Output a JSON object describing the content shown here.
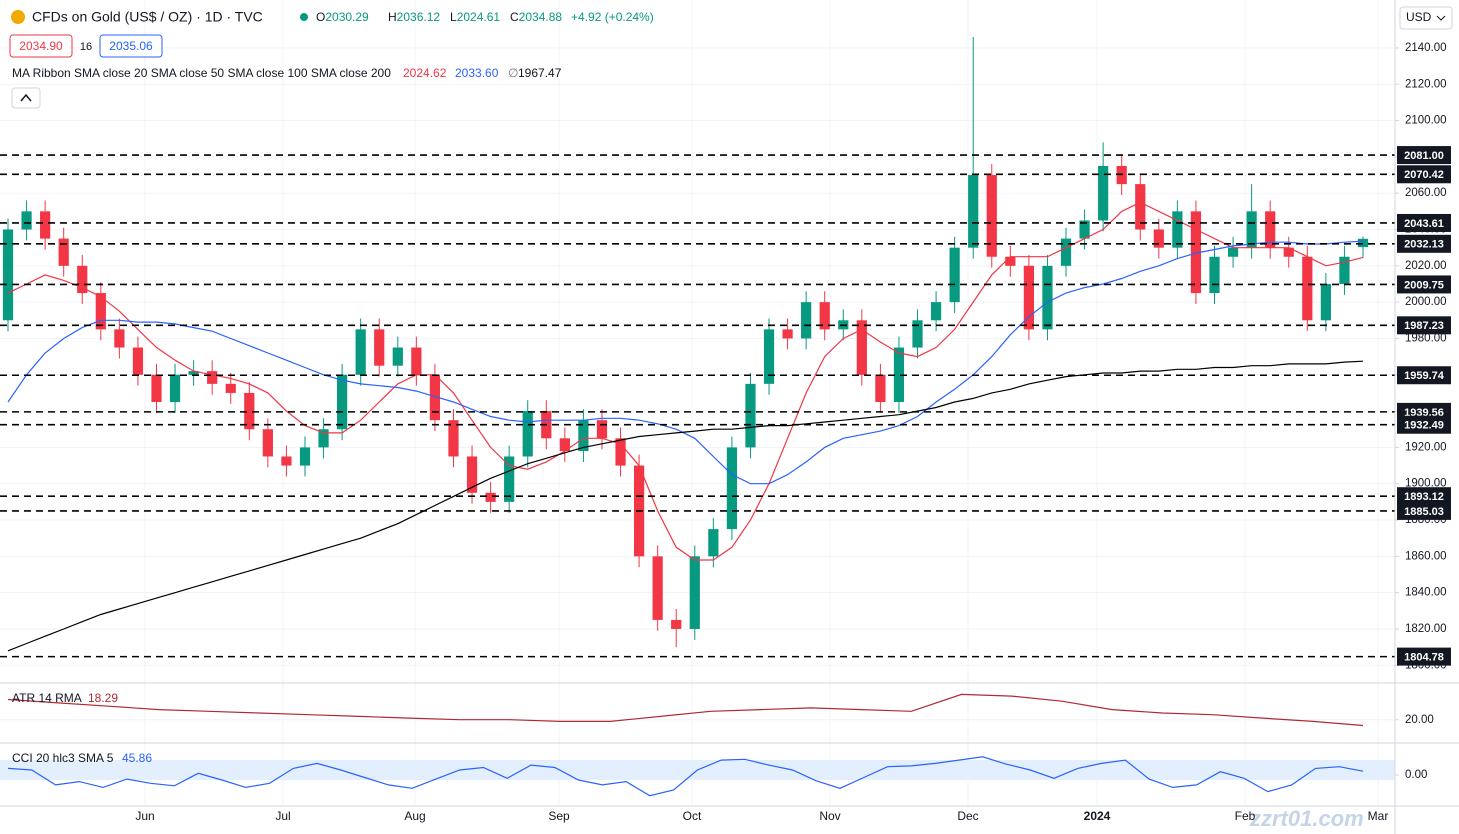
{
  "ui": {
    "currency": "USD",
    "bid": "2034.90",
    "spread": 16,
    "ask": "2035.06",
    "ma100_value": "∅",
    "watermark": "zzrt01.com",
    "ohlc": [
      {
        "label": "O",
        "value": 2030.29
      },
      {
        "label": "H",
        "value": 2036.12
      },
      {
        "label": "L",
        "value": 2024.61
      },
      {
        "label": "C",
        "value": 2034.88
      }
    ],
    "change": "+4.92 (+0.24%)"
  },
  "chart_data": [
    {
      "type": "candlestick",
      "title": "CFDs on Gold (US$ / OZ) · 1D · TVC",
      "legend_title": "MA Ribbon SMA close 20 SMA close 50 SMA close 100 SMA close 200",
      "x_labels": [
        "Jun",
        "Jul",
        "Aug",
        "Sep",
        "Oct",
        "Nov",
        "Dec",
        "2024",
        "Feb",
        "Mar"
      ],
      "up_color": "#089981",
      "down_color": "#f23645",
      "open": [
        1990,
        2040,
        2050,
        2035,
        2020,
        2005,
        1985,
        1975,
        1960,
        1945,
        1960,
        1962,
        1955,
        1950,
        1930,
        1915,
        1910,
        1920,
        1930,
        1960,
        1985,
        1965,
        1975,
        1960,
        1935,
        1915,
        1895,
        1890,
        1915,
        1940,
        1925,
        1918,
        1935,
        1925,
        1910,
        1860,
        1825,
        1820,
        1860,
        1875,
        1920,
        1955,
        1985,
        1980,
        2000,
        1985,
        1990,
        1960,
        1945,
        1975,
        1990,
        2000,
        2030,
        2070,
        2025,
        2020,
        1985,
        2020,
        2035,
        2045,
        2075,
        2065,
        2040,
        2030,
        2050,
        2005,
        2025,
        2030,
        2050,
        2030,
        2025,
        1990,
        2010,
        2030.29
      ],
      "high": [
        2046,
        2056,
        2056,
        2041,
        2026,
        2011,
        1991,
        1981,
        1966,
        1966,
        1968,
        1968,
        1961,
        1956,
        1936,
        1921,
        1926,
        1936,
        1966,
        1991,
        1991,
        1981,
        1981,
        1966,
        1941,
        1921,
        1901,
        1921,
        1946,
        1946,
        1931,
        1941,
        1941,
        1931,
        1916,
        1866,
        1831,
        1866,
        1881,
        1926,
        1961,
        1991,
        1991,
        2006,
        2006,
        1996,
        1996,
        1966,
        1981,
        1996,
        2006,
        2036,
        2146,
        2076,
        2031,
        2026,
        2026,
        2041,
        2051,
        2088,
        2081,
        2071,
        2046,
        2056,
        2056,
        2031,
        2036,
        2065,
        2056,
        2036,
        2031,
        2016,
        2031,
        2036.12
      ],
      "low": [
        1984,
        2034,
        2029,
        2014,
        1999,
        1979,
        1969,
        1954,
        1939,
        1939,
        1954,
        1949,
        1944,
        1924,
        1909,
        1904,
        1904,
        1914,
        1924,
        1954,
        1959,
        1959,
        1954,
        1929,
        1909,
        1889,
        1884,
        1884,
        1909,
        1919,
        1912,
        1912,
        1919,
        1904,
        1854,
        1819,
        1810,
        1814,
        1854,
        1869,
        1914,
        1949,
        1974,
        1974,
        1979,
        1979,
        1954,
        1939,
        1939,
        1969,
        1984,
        1994,
        2024,
        2019,
        2014,
        1979,
        1979,
        2014,
        2029,
        2039,
        2059,
        2034,
        2024,
        2024,
        1999,
        1999,
        2019,
        2024,
        2024,
        2019,
        1984,
        1984,
        2004,
        2024.61
      ],
      "close": [
        2040,
        2050,
        2035,
        2020,
        2005,
        1985,
        1975,
        1960,
        1945,
        1960,
        1962,
        1955,
        1950,
        1930,
        1915,
        1910,
        1920,
        1930,
        1960,
        1985,
        1965,
        1975,
        1960,
        1935,
        1915,
        1895,
        1890,
        1915,
        1940,
        1925,
        1918,
        1935,
        1925,
        1910,
        1860,
        1825,
        1820,
        1860,
        1875,
        1920,
        1955,
        1985,
        1980,
        2000,
        1985,
        1990,
        1960,
        1945,
        1975,
        1990,
        2000,
        2030,
        2070,
        2025,
        2020,
        1985,
        2020,
        2035,
        2045,
        2075,
        2065,
        2040,
        2030,
        2050,
        2005,
        2025,
        2030,
        2050,
        2030,
        2025,
        1990,
        2010,
        2025,
        2034.88
      ],
      "series": [
        {
          "name": "SMA close 20",
          "color": "#f23645",
          "values": [
            2005,
            2010,
            2015,
            2012,
            2008,
            2003,
            1995,
            1985,
            1975,
            1968,
            1962,
            1960,
            1958,
            1955,
            1950,
            1940,
            1932,
            1928,
            1928,
            1935,
            1945,
            1955,
            1960,
            1960,
            1950,
            1935,
            1920,
            1910,
            1908,
            1912,
            1918,
            1925,
            1925,
            1922,
            1910,
            1885,
            1865,
            1858,
            1858,
            1865,
            1880,
            1900,
            1925,
            1950,
            1970,
            1980,
            1985,
            1978,
            1972,
            1970,
            1975,
            1985,
            2000,
            2015,
            2025,
            2025,
            2025,
            2030,
            2035,
            2040,
            2050,
            2055,
            2050,
            2045,
            2040,
            2035,
            2030,
            2030,
            2030,
            2030,
            2025,
            2020,
            2022,
            2024.62
          ]
        },
        {
          "name": "SMA close 50",
          "color": "#2962ff",
          "last_label": "2033.60",
          "values": [
            1945,
            1960,
            1972,
            1980,
            1986,
            1990,
            1990,
            1989,
            1989,
            1988,
            1986,
            1984,
            1980,
            1976,
            1972,
            1968,
            1964,
            1960,
            1957,
            1955,
            1954,
            1953,
            1951,
            1948,
            1945,
            1941,
            1937,
            1935,
            1934,
            1935,
            1935,
            1935,
            1936,
            1936,
            1935,
            1933,
            1930,
            1925,
            1915,
            1905,
            1900,
            1900,
            1905,
            1912,
            1920,
            1925,
            1927,
            1929,
            1932,
            1937,
            1945,
            1952,
            1960,
            1970,
            1982,
            1992,
            2000,
            2005,
            2008,
            2010,
            2013,
            2017,
            2020,
            2024,
            2027,
            2029,
            2031,
            2032,
            2033,
            2033,
            2032,
            2032,
            2033,
            2033.6
          ]
        },
        {
          "name": "SMA close 200",
          "color": "#000000",
          "values": [
            1808,
            1812,
            1816,
            1820,
            1824,
            1828,
            1831,
            1834,
            1837,
            1840,
            1843,
            1846,
            1849,
            1852,
            1855,
            1858,
            1861,
            1864,
            1867,
            1870,
            1874,
            1878,
            1883,
            1888,
            1893,
            1898,
            1903,
            1907,
            1911,
            1914,
            1917,
            1920,
            1922,
            1924,
            1926,
            1927,
            1928,
            1929,
            1930,
            1930,
            1931,
            1932,
            1932,
            1933,
            1934,
            1935,
            1936,
            1937,
            1938,
            1940,
            1942,
            1945,
            1947,
            1950,
            1952,
            1955,
            1957,
            1959,
            1960,
            1961,
            1961,
            1962,
            1962,
            1963,
            1963,
            1964,
            1964,
            1965,
            1965,
            1966,
            1966,
            1966,
            1967,
            1967.47
          ]
        }
      ],
      "ylim": [
        1791.9,
        2166.4
      ],
      "yticks": [
        {
          "value": 1800,
          "label": "1800.00"
        },
        {
          "value": 1820,
          "label": "1820.00"
        },
        {
          "value": 1840,
          "label": "1840.00"
        },
        {
          "value": 1860,
          "label": "1860.00"
        },
        {
          "value": 1880,
          "label": "1880.00"
        },
        {
          "value": 1900,
          "label": "1900.00"
        },
        {
          "value": 1920,
          "label": "1920.00"
        },
        {
          "value": 1940,
          "label": "1940.00"
        },
        {
          "value": 1960,
          "label": "1960.00"
        },
        {
          "value": 1980,
          "label": "1980.00"
        },
        {
          "value": 2000,
          "label": "2000.00"
        },
        {
          "value": 2020,
          "label": "2020.00"
        },
        {
          "value": 2040,
          "label": "2040.00"
        },
        {
          "value": 2060,
          "label": "2060.00"
        },
        {
          "value": 2080,
          "label": "2080.00"
        },
        {
          "value": 2100,
          "label": "2100.00"
        },
        {
          "value": 2120,
          "label": "2120.00"
        },
        {
          "value": 2140,
          "label": "2140.00"
        }
      ],
      "levels": [
        {
          "value": 2081,
          "label": "2081.00"
        },
        2070.42,
        2043.61,
        2032.13,
        2009.75,
        1987.23,
        1959.74,
        1939.56,
        1932.49,
        1893.12,
        1885.03,
        1804.78
      ],
      "grid": true
    },
    {
      "type": "line",
      "title": "ATR 14 RMA",
      "color": "#b22833",
      "values": [
        26,
        25,
        24,
        23,
        22.5,
        22,
        21.5,
        21,
        20.5,
        20,
        20,
        19.5,
        19.5,
        21,
        22.5,
        23,
        23.5,
        23,
        22.5,
        27.5,
        27,
        25.5,
        23,
        22,
        21.5,
        20.5,
        19.5,
        18.29
      ],
      "ylim": [
        13.7,
        30
      ],
      "yticks": [
        {
          "value": 20,
          "label": "20.00"
        }
      ]
    },
    {
      "type": "line",
      "title": "CCI 20 hlc3 SMA 5",
      "color": "#2962ff",
      "values": [
        80,
        60,
        -120,
        -80,
        -150,
        -50,
        -100,
        -130,
        20,
        -60,
        -150,
        -100,
        80,
        140,
        60,
        -30,
        -120,
        -160,
        -50,
        60,
        90,
        -40,
        120,
        90,
        -60,
        -120,
        -80,
        -250,
        -180,
        60,
        180,
        190,
        120,
        60,
        -70,
        -160,
        -30,
        100,
        110,
        140,
        180,
        220,
        130,
        60,
        -40,
        80,
        140,
        180,
        -50,
        -150,
        -120,
        40,
        -40,
        -200,
        -120,
        80,
        100,
        45.86
      ],
      "ylim": [
        -350,
        350
      ],
      "yticks": [
        {
          "value": 0,
          "label": "0.00"
        }
      ]
    }
  ]
}
